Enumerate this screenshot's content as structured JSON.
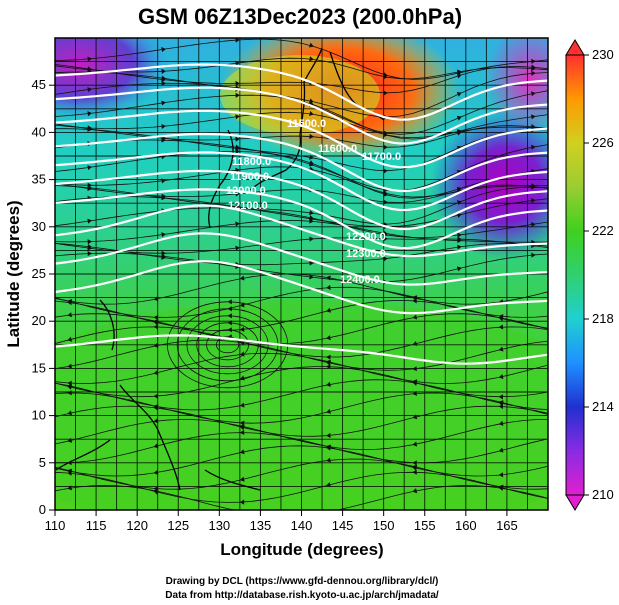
{
  "title": "GSM 06Z13Dec2023 (200.0hPa)",
  "xlabel": "Longitude (degrees)",
  "ylabel": "Latitude  (degrees)",
  "x_ticks": [
    "110",
    "115",
    "120",
    "125",
    "130",
    "135",
    "140",
    "145",
    "150",
    "155",
    "160",
    "165"
  ],
  "y_ticks": [
    "0",
    "5",
    "10",
    "15",
    "20",
    "25",
    "30",
    "35",
    "40",
    "45"
  ],
  "colorbar": {
    "ticks": [
      "210",
      "214",
      "218",
      "222",
      "226",
      "230"
    ],
    "range": [
      210,
      230
    ],
    "colors": [
      "#e020d0",
      "#8a2be2",
      "#2030d0",
      "#1e90ff",
      "#20d0d0",
      "#30d070",
      "#40d020",
      "#9acd32",
      "#d0d020",
      "#ff9900",
      "#ff3030"
    ]
  },
  "contours": [
    {
      "label": "11500.0"
    },
    {
      "label": "11600.0"
    },
    {
      "label": "11700.0"
    },
    {
      "label": "11800.0"
    },
    {
      "label": "11900.0"
    },
    {
      "label": "12000.0"
    },
    {
      "label": "12100.0"
    },
    {
      "label": "12200.0"
    },
    {
      "label": "12300.0"
    },
    {
      "label": "12400.0"
    }
  ],
  "credit_line1": "Drawing by DCL (https://www.gfd-dennou.org/library/dcl/)",
  "credit_line2": "Data from http://database.rish.kyoto-u.ac.jp/arch/jmadata/"
}
